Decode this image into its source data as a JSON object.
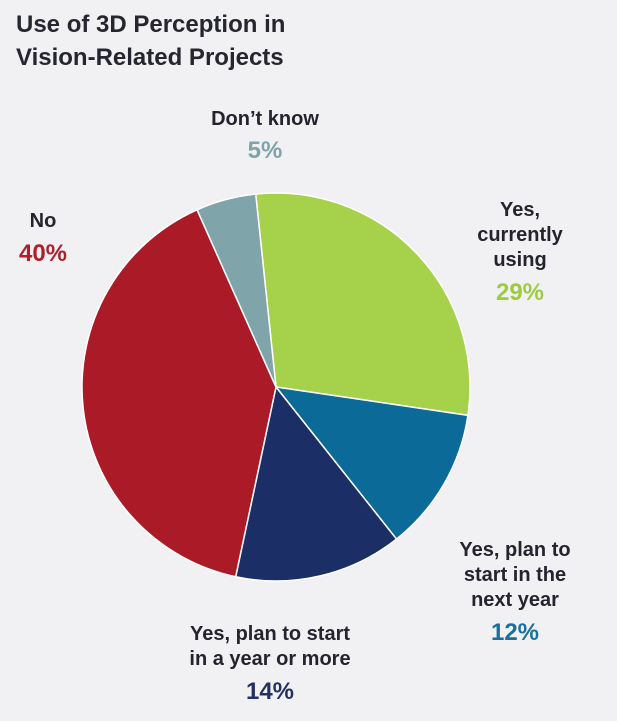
{
  "title_lines": [
    "Use of 3D Perception in",
    "Vision-Related Projects"
  ],
  "chart_data": {
    "type": "pie",
    "title": "Use of 3D Perception in Vision-Related Projects",
    "slices": [
      {
        "label": "Yes, currently using",
        "value": 29,
        "display": "29%",
        "color": "#a6d24b"
      },
      {
        "label": "Yes, plan to start in the next year",
        "value": 12,
        "display": "12%",
        "color": "#0b6a98"
      },
      {
        "label": "Yes, plan to start in a year or more",
        "value": 14,
        "display": "14%",
        "color": "#1b2f66"
      },
      {
        "label": "No",
        "value": 40,
        "display": "40%",
        "color": "#ab1b27"
      },
      {
        "label": "Don't know",
        "value": 5,
        "display": "5%",
        "color": "#7fa5aa"
      }
    ]
  },
  "labels": {
    "currently_using": {
      "lines": [
        "Yes,",
        "currently",
        "using"
      ],
      "pct": "29%",
      "pct_color": "#9ccc3d"
    },
    "next_year": {
      "lines": [
        "Yes, plan to",
        "start in the",
        "next year"
      ],
      "pct": "12%",
      "pct_color": "#1a6f9d"
    },
    "year_or_more": {
      "lines": [
        "Yes, plan to start",
        "in a year or more"
      ],
      "pct": "14%",
      "pct_color": "#233065"
    },
    "no": {
      "lines": [
        "No"
      ],
      "pct": "40%",
      "pct_color": "#b01e2a"
    },
    "dont_know": {
      "lines": [
        "Don’t know"
      ],
      "pct": "5%",
      "pct_color": "#7ea4aa"
    }
  }
}
